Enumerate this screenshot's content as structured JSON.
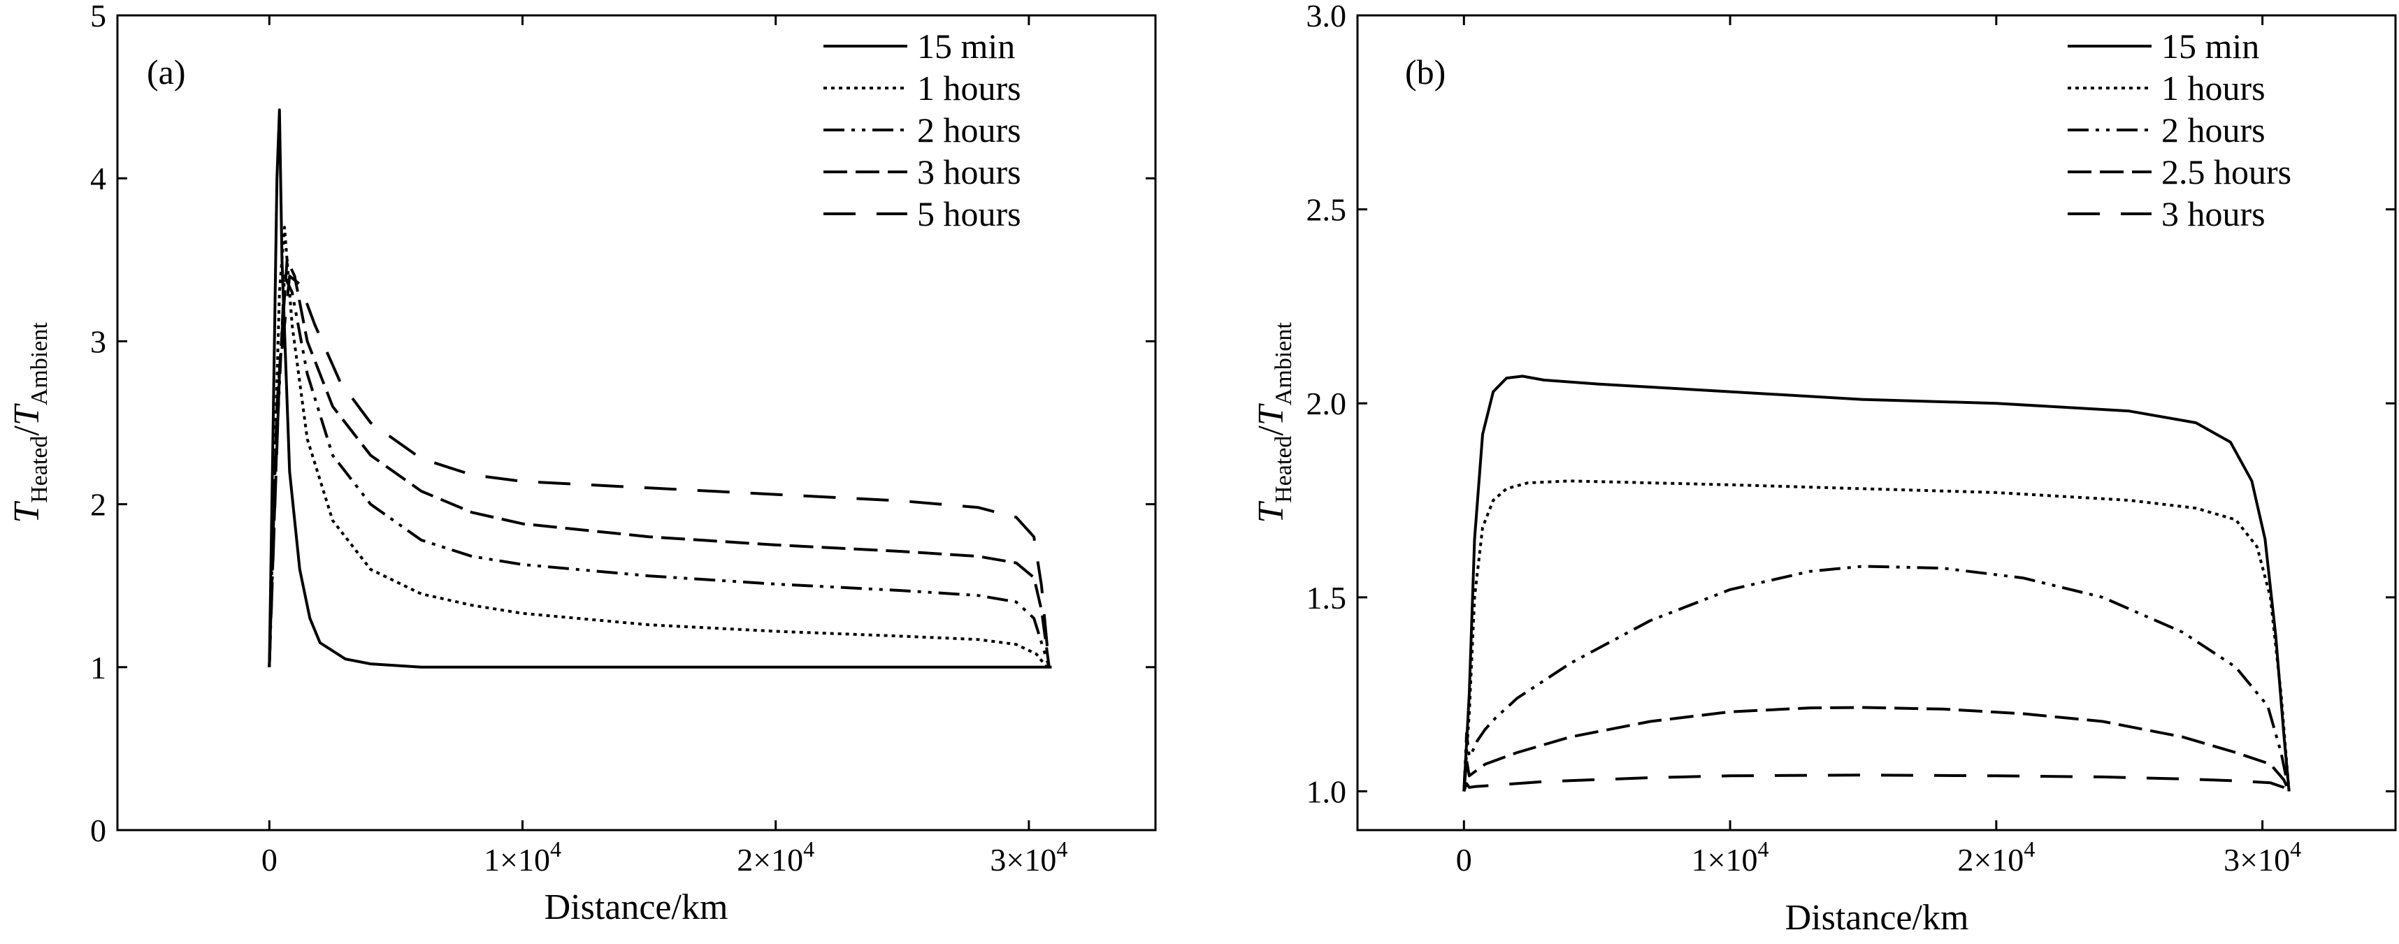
{
  "chart_data": [
    {
      "type": "line",
      "panel_label": "(a)",
      "xlabel": "Distance/km",
      "ylabel": {
        "T1": "T",
        "sub1": "Heated",
        "slash": "/",
        "T2": "T",
        "sub2": "Ambient"
      },
      "xlim": [
        -6000,
        35000
      ],
      "ylim": [
        0,
        5
      ],
      "x_ticks": [
        {
          "value": 0,
          "mant": "0",
          "exp": ""
        },
        {
          "value": 10000,
          "mant": "1×10",
          "exp": "4"
        },
        {
          "value": 20000,
          "mant": "2×10",
          "exp": "4"
        },
        {
          "value": 30000,
          "mant": "3×10",
          "exp": "4"
        }
      ],
      "y_ticks": [
        {
          "value": 0,
          "label": "0"
        },
        {
          "value": 1,
          "label": "1"
        },
        {
          "value": 2,
          "label": "2"
        },
        {
          "value": 3,
          "label": "3"
        },
        {
          "value": 4,
          "label": "4"
        },
        {
          "value": 5,
          "label": "5"
        }
      ],
      "legend_position": "top-right",
      "series": [
        {
          "name": "15 min",
          "style": "solid",
          "x": [
            0,
            150,
            300,
            400,
            500,
            800,
            1200,
            1600,
            2000,
            3000,
            4000,
            6000,
            10000,
            20000,
            30000,
            30900
          ],
          "y": [
            1.0,
            2.5,
            4.0,
            4.42,
            3.5,
            2.2,
            1.6,
            1.3,
            1.15,
            1.05,
            1.02,
            1.0,
            1.0,
            1.0,
            1.0,
            1.0
          ]
        },
        {
          "name": "1 hours",
          "style": "dotted",
          "x": [
            0,
            200,
            400,
            600,
            900,
            1500,
            2500,
            4000,
            6000,
            8000,
            10000,
            15000,
            20000,
            25000,
            28000,
            29500,
            30300,
            30700
          ],
          "y": [
            1.0,
            2.2,
            3.3,
            3.7,
            3.1,
            2.4,
            1.9,
            1.6,
            1.45,
            1.38,
            1.33,
            1.26,
            1.22,
            1.19,
            1.17,
            1.14,
            1.08,
            1.0
          ]
        },
        {
          "name": "2 hours",
          "style": "dashdotdot",
          "x": [
            0,
            300,
            600,
            900,
            1500,
            2500,
            4000,
            6000,
            8000,
            10000,
            15000,
            20000,
            25000,
            28000,
            29500,
            30200,
            30500,
            30800
          ],
          "y": [
            1.0,
            2.4,
            3.4,
            3.3,
            2.8,
            2.3,
            2.0,
            1.78,
            1.68,
            1.63,
            1.56,
            1.51,
            1.47,
            1.44,
            1.4,
            1.3,
            1.15,
            1.0
          ]
        },
        {
          "name": "3 hours",
          "style": "longdash",
          "x": [
            0,
            300,
            700,
            1000,
            1500,
            2500,
            4000,
            6000,
            8000,
            10000,
            15000,
            20000,
            25000,
            28000,
            29500,
            30200,
            30500,
            30800
          ],
          "y": [
            1.0,
            2.6,
            3.5,
            3.4,
            3.0,
            2.6,
            2.3,
            2.08,
            1.95,
            1.88,
            1.8,
            1.75,
            1.71,
            1.68,
            1.64,
            1.55,
            1.35,
            1.0
          ]
        },
        {
          "name": "5 hours",
          "style": "widedash",
          "x": [
            0,
            400,
            800,
            1200,
            1800,
            2800,
            4000,
            6000,
            8000,
            10000,
            15000,
            20000,
            25000,
            28000,
            29500,
            30200,
            30500,
            30800
          ],
          "y": [
            1.0,
            2.8,
            3.4,
            3.35,
            3.1,
            2.75,
            2.5,
            2.28,
            2.18,
            2.14,
            2.1,
            2.06,
            2.02,
            1.98,
            1.92,
            1.8,
            1.5,
            1.0
          ]
        }
      ]
    },
    {
      "type": "line",
      "panel_label": "(b)",
      "xlabel": "Distance/km",
      "ylabel": {
        "T1": "T",
        "sub1": "Heated",
        "slash": "/",
        "T2": "T",
        "sub2": "Ambient"
      },
      "xlim": [
        -4000,
        35000
      ],
      "ylim": [
        0.9,
        3.0
      ],
      "x_ticks": [
        {
          "value": 0,
          "mant": "0",
          "exp": ""
        },
        {
          "value": 10000,
          "mant": "1×10",
          "exp": "4"
        },
        {
          "value": 20000,
          "mant": "2×10",
          "exp": "4"
        },
        {
          "value": 30000,
          "mant": "3×10",
          "exp": "4"
        }
      ],
      "y_ticks": [
        {
          "value": 1.0,
          "label": "1.0"
        },
        {
          "value": 1.5,
          "label": "1.5"
        },
        {
          "value": 2.0,
          "label": "2.0"
        },
        {
          "value": 2.5,
          "label": "2.5"
        },
        {
          "value": 3.0,
          "label": "3.0"
        }
      ],
      "legend_position": "top-right",
      "series": [
        {
          "name": "15 min",
          "style": "solid",
          "x": [
            0,
            200,
            400,
            700,
            1100,
            1600,
            2200,
            3000,
            5000,
            10000,
            15000,
            20000,
            25000,
            27500,
            28800,
            29600,
            30100,
            30500,
            30800,
            31000
          ],
          "y": [
            1.0,
            1.25,
            1.65,
            1.92,
            2.03,
            2.065,
            2.07,
            2.06,
            2.05,
            2.03,
            2.01,
            2.0,
            1.98,
            1.95,
            1.9,
            1.8,
            1.65,
            1.4,
            1.15,
            1.0
          ]
        },
        {
          "name": "1 hours",
          "style": "dotted",
          "x": [
            0,
            200,
            400,
            700,
            1100,
            1600,
            2400,
            4000,
            10000,
            15000,
            20000,
            25000,
            27500,
            29000,
            29800,
            30300,
            30700,
            31000
          ],
          "y": [
            1.0,
            1.2,
            1.5,
            1.68,
            1.75,
            1.78,
            1.795,
            1.8,
            1.79,
            1.78,
            1.77,
            1.75,
            1.73,
            1.7,
            1.63,
            1.5,
            1.25,
            1.0
          ]
        },
        {
          "name": "2 hours",
          "style": "dashdotdot",
          "x": [
            0,
            100,
            200,
            300,
            500,
            800,
            1200,
            2000,
            4000,
            7000,
            10000,
            13000,
            15000,
            18000,
            21000,
            24000,
            27000,
            29000,
            30200,
            30700,
            31000
          ],
          "y": [
            1.0,
            1.15,
            1.09,
            1.1,
            1.13,
            1.16,
            1.19,
            1.24,
            1.33,
            1.44,
            1.52,
            1.567,
            1.58,
            1.575,
            1.55,
            1.5,
            1.41,
            1.32,
            1.22,
            1.1,
            1.0
          ]
        },
        {
          "name": "2.5 hours",
          "style": "longdash",
          "x": [
            0,
            100,
            200,
            400,
            800,
            2000,
            4000,
            7000,
            10000,
            13000,
            15000,
            18000,
            21000,
            24000,
            27000,
            29000,
            30300,
            30800,
            31000
          ],
          "y": [
            1.0,
            1.08,
            1.04,
            1.05,
            1.07,
            1.1,
            1.14,
            1.18,
            1.205,
            1.215,
            1.216,
            1.212,
            1.2,
            1.18,
            1.14,
            1.1,
            1.07,
            1.03,
            1.0
          ]
        },
        {
          "name": "3 hours",
          "style": "widedash",
          "x": [
            0,
            100,
            200,
            400,
            1000,
            3000,
            7000,
            10000,
            15000,
            20000,
            24000,
            27000,
            29000,
            30300,
            30800,
            31000
          ],
          "y": [
            1.0,
            1.02,
            1.01,
            1.012,
            1.015,
            1.025,
            1.035,
            1.04,
            1.042,
            1.04,
            1.037,
            1.032,
            1.027,
            1.022,
            1.01,
            1.0
          ]
        }
      ]
    }
  ],
  "colors": {
    "line": "#000000",
    "background": "#ffffff"
  }
}
